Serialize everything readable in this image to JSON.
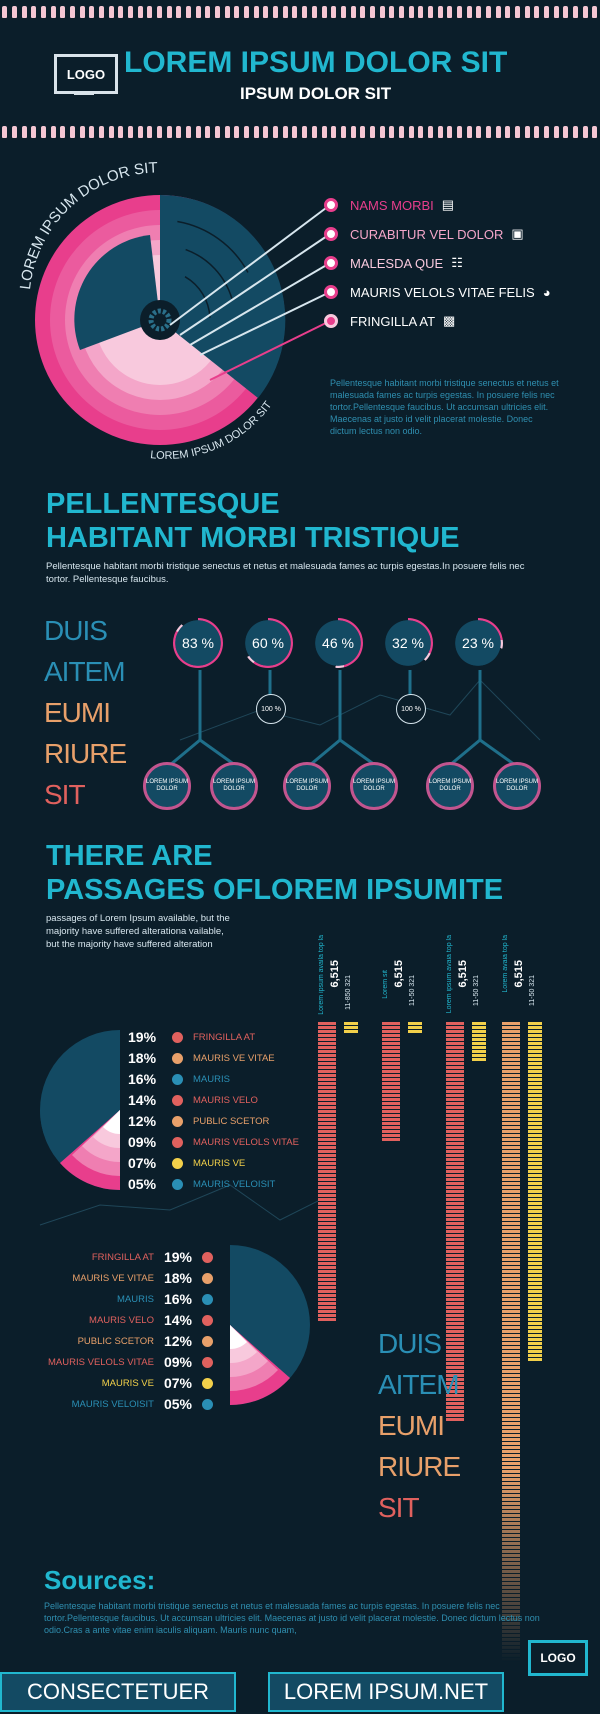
{
  "header": {
    "logo": "LOGO",
    "title": "LOREM IPSUM DOLOR SIT",
    "subtitle": "IPSUM DOLOR SIT"
  },
  "radial": {
    "arc_top": "LOREM IPSUM DOLOR SIT",
    "arc_bottom": "LOREM IPSUM DOLOR SIT",
    "items": [
      {
        "label": "NAMS MORBI",
        "icon": "chart-icon"
      },
      {
        "label": "CURABITUR VEL DOLOR",
        "icon": "book-icon"
      },
      {
        "label": "MALESDA QUE",
        "icon": "cart-icon"
      },
      {
        "label": "MAURIS VELOLS VITAE FELIS",
        "icon": "helmet-icon"
      },
      {
        "label": "FRINGILLA AT",
        "icon": "camera-icon"
      }
    ],
    "paragraph": "Pellentesque habitant morbi tristique senectus et netus et malesuada fames ac turpis egestas. In posuere felis nec tortor.Pellentesque faucibus. Ut accumsan ultricies elit. Maecenas at justo id velit placerat molestie. Donec dictum lectus non odio."
  },
  "section2": {
    "heading_line1": "PELLENTESQUE",
    "heading_line2": "HABITANT MORBI TRISTIQUE",
    "paragraph": "Pellentesque habitant morbi tristique senectus et netus et malesuada fames ac turpis egestas.In posuere felis nec tortor. Pellentesque faucibus.",
    "words": [
      "DUIS",
      "AITEM",
      "EUMI",
      "RIURE",
      "SIT"
    ],
    "percents": [
      "83 %",
      "60 %",
      "46 %",
      "32 %",
      "23 %"
    ],
    "percent_values": [
      83,
      60,
      46,
      32,
      23
    ],
    "small_rings": [
      "100 %",
      "100 %"
    ],
    "sub_circles": [
      "LOREM IPSUM DOLOR",
      "LOREM IPSUM DOLOR",
      "LOREM IPSUM DOLOR",
      "LOREM IPSUM DOLOR",
      "LOREM IPSUM DOLOR",
      "LOREM IPSUM DOLOR"
    ]
  },
  "section3": {
    "heading_line1": "THERE ARE",
    "heading_line2": "PASSAGES OFLOREM IPSUMITE",
    "paragraph": "passages of Lorem Ipsum available, but the majority have suffered alterationa vailable, but the majority have suffered alteration",
    "legend": [
      {
        "pct": "19%",
        "label": "FRINGILLA AT",
        "color": "#e0615e"
      },
      {
        "pct": "18%",
        "label": "MAURIS VE VITAE",
        "color": "#e8a06a"
      },
      {
        "pct": "16%",
        "label": "MAURIS",
        "color": "#2a8fb5"
      },
      {
        "pct": "14%",
        "label": "MAURIS VELO",
        "color": "#e0615e"
      },
      {
        "pct": "12%",
        "label": "PUBLIC SCETOR",
        "color": "#e8a06a"
      },
      {
        "pct": "09%",
        "label": "MAURIS VELOLS VITAE",
        "color": "#e0615e"
      },
      {
        "pct": "07%",
        "label": "MAURIS VE",
        "color": "#f2d04a"
      },
      {
        "pct": "05%",
        "label": "MAURIS VELOISIT",
        "color": "#2a8fb5"
      }
    ],
    "bars": [
      {
        "title": "Lorem ipsum availa",
        "sub": "top la",
        "num": "6,515",
        "detail": "11-850",
        "detail2": "321",
        "color": "#e0615e",
        "height_value": 75,
        "yellow_value": 3
      },
      {
        "title": "Lorem sit",
        "sub": "",
        "num": "6,515",
        "detail": "11-50",
        "detail2": "321",
        "color": "#e0615e",
        "height_value": 30,
        "yellow_value": 3
      },
      {
        "title": "Lorem ipsum avaia",
        "sub": "top la",
        "num": "6,515",
        "detail": "11-50",
        "detail2": "321",
        "color": "#e0615e",
        "height_value": 100,
        "yellow_value": 10
      },
      {
        "title": "Lorem avaia",
        "sub": "top la",
        "num": "6,515",
        "detail": "11-50",
        "detail2": "321",
        "color": "#e8a06a",
        "height_value": 160,
        "yellow_value": 85
      }
    ],
    "words": [
      "DUIS",
      "AITEM",
      "EUMI",
      "RIURE",
      "SIT"
    ]
  },
  "sources": {
    "heading": "Sources:",
    "paragraph": "Pellentesque habitant morbi tristique senectus et netus et malesuada fames ac turpis egestas. In posuere felis nec tortor.Pellentesque faucibus. Ut accumsan ultricies elit. Maecenas at justo id velit placerat molestie. Donec dictum lectus non odio.Cras a ante vitae enim iaculis aliquam. Mauris nunc quam,",
    "logo": "LOGO"
  },
  "footer": {
    "left": "CONSECTETUER",
    "right": "LOREM IPSUM.NET"
  },
  "colors": {
    "background": "#0b1e2a",
    "teal": "#21b7cf",
    "pink": "#e83e8c",
    "orange": "#e8a06a",
    "coral": "#e0615e",
    "yellow": "#f2d04a"
  }
}
